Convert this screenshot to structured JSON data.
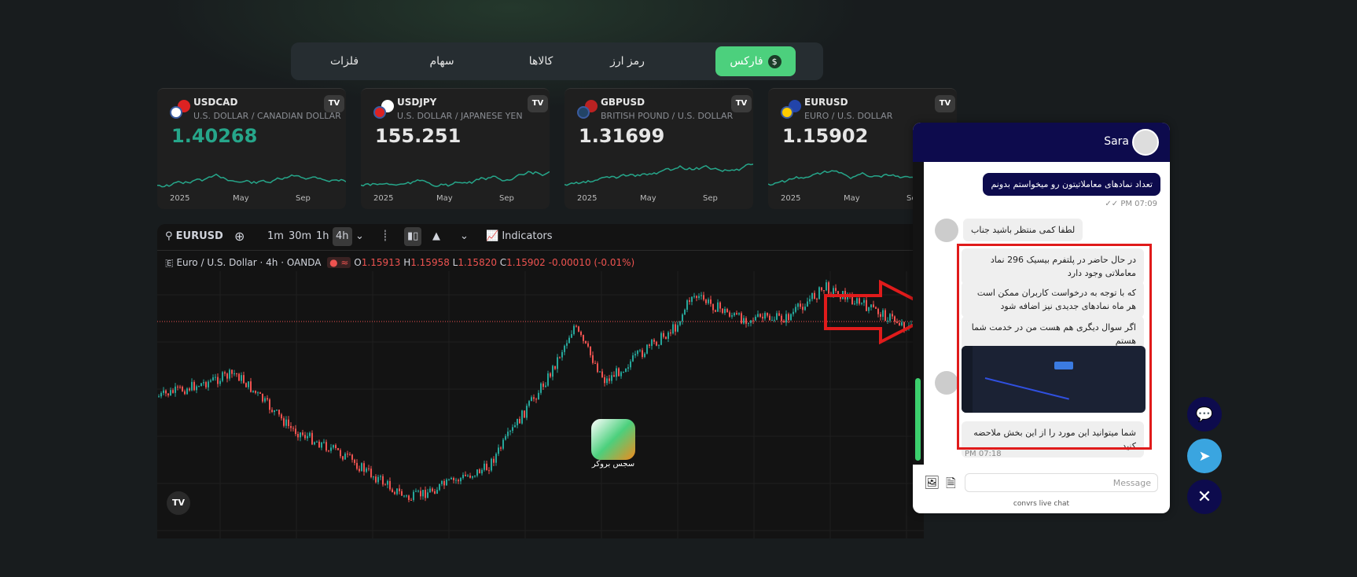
{
  "tabs": [
    {
      "label": "فارکس",
      "active": true,
      "icon": "dollar-icon"
    },
    {
      "label": "رمز ارز"
    },
    {
      "label": "کالاها"
    },
    {
      "label": "سهام"
    },
    {
      "label": "فلزات"
    }
  ],
  "cards": [
    {
      "symbol": "USDCAD",
      "desc": "U.S. DOLLAR / CANADIAN DOLLAR",
      "price": "1.40268",
      "price_color": "#26a68a",
      "axis": [
        "2025",
        "May",
        "Sep"
      ]
    },
    {
      "symbol": "USDJPY",
      "desc": "U.S. DOLLAR / JAPANESE YEN",
      "price": "155.251",
      "axis": [
        "2025",
        "May",
        "Sep"
      ]
    },
    {
      "symbol": "GBPUSD",
      "desc": "BRITISH POUND / U.S. DOLLAR",
      "price": "1.31699",
      "axis": [
        "2025",
        "May",
        "Sep"
      ]
    },
    {
      "symbol": "EURUSD",
      "desc": "EURO / U.S. DOLLAR",
      "price": "1.15902",
      "axis": [
        "2025",
        "May",
        "Sep"
      ]
    }
  ],
  "chart": {
    "symbol": "EURUSD",
    "intervals": [
      "1m",
      "30m",
      "1h",
      "4h"
    ],
    "selected_interval": "4h",
    "indicators": "Indicators",
    "title": "Euro / U.S. Dollar · 4h · OANDA",
    "ohlc": {
      "o": "1.15913",
      "h": "1.15958",
      "l": "1.15820",
      "c": "1.15902",
      "chg": "-0.00010 (-0.01%)"
    },
    "watermark": "سجس بروکر",
    "up_color": "#26a69a",
    "down_color": "#ef5350"
  },
  "chat": {
    "agent": "Sara",
    "messages": [
      {
        "dir": "out",
        "text": "تعداد نمادهای معاملاتیتون رو میخواستم بدونم",
        "time": "PM 07:09"
      },
      {
        "dir": "in",
        "text": "لطفا کمی منتظر باشید جناب"
      },
      {
        "dir": "in",
        "text": "در حال حاضر در پلتفرم بیسیک 296 نماد معاملاتی وجود دارد"
      },
      {
        "dir": "in",
        "text": "که با توجه به درخواست کاربران ممکن است هر ماه نمادهای جدیدی نیز اضافه شود"
      },
      {
        "dir": "in",
        "text": "اگر سوال دیگری هم هست من در خدمت شما هستم"
      },
      {
        "dir": "in",
        "text": "شما میتوانید این مورد را از این بخش ملاحضه کنید",
        "time": "PM 07:18"
      }
    ],
    "placeholder": "Message",
    "footer": "convrs live chat",
    "header_color": "#0d0b4d"
  },
  "annotation_color": "#e01b1b"
}
